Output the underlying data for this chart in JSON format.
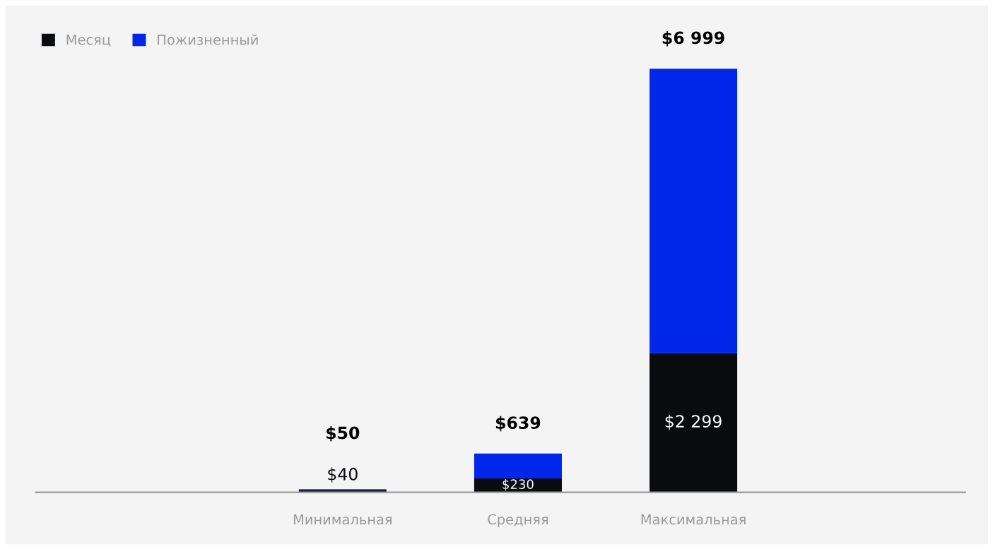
{
  "chart_data": {
    "type": "bar",
    "stacked": true,
    "categories": [
      "Минимальная",
      "Средняя",
      "Максимальная"
    ],
    "series": [
      {
        "name": "Месяц",
        "color": "#0a0b0e",
        "values": [
          40,
          230,
          2299
        ],
        "value_labels": [
          "$40",
          "$230",
          "$2 299"
        ]
      },
      {
        "name": "Пожизненный",
        "color": "#0026ea",
        "values": [
          10,
          409,
          4700
        ]
      }
    ],
    "totals": [
      "$50",
      "$639",
      "$6 999"
    ],
    "legend": "top left",
    "grid": false
  }
}
